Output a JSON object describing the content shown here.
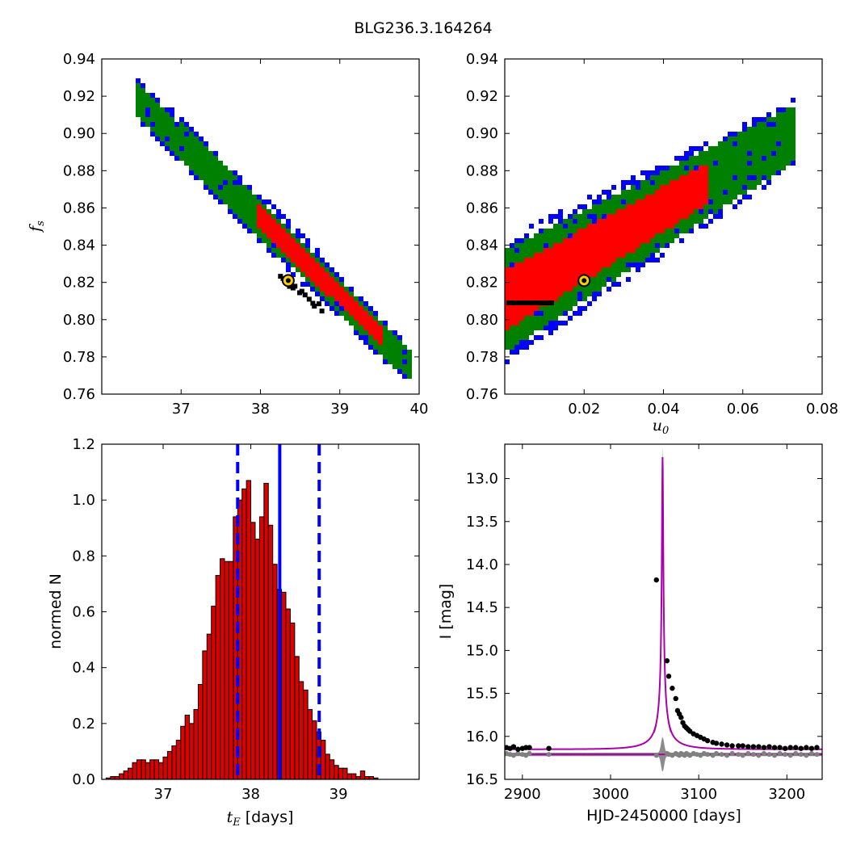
{
  "figure": {
    "title": "BLG236.3.164264",
    "colors": {
      "level1": "#ff0000",
      "level2": "#008000",
      "level3": "#0000ff",
      "chain_points": "#000000",
      "best_fit_marker": "#ffcc00",
      "hist_bar": "#dd0000",
      "median_line": "#0000ff",
      "model_curve": "#aa00aa",
      "data_points": "#000000",
      "residuals": "#808080"
    }
  },
  "chart_data": [
    {
      "type": "heatmap",
      "id": "tE_vs_fs",
      "xlabel": "",
      "ylabel": "f_s",
      "xlim": [
        36.0,
        40.0
      ],
      "ylim": [
        0.76,
        0.94
      ],
      "xticks": [
        "37",
        "38",
        "39",
        "40"
      ],
      "yticks": [
        "0.76",
        "0.78",
        "0.80",
        "0.82",
        "0.84",
        "0.86",
        "0.88",
        "0.90",
        "0.92",
        "0.94"
      ],
      "best_fit": {
        "x": 38.35,
        "y": 0.821
      },
      "band": {
        "x_start": 36.4,
        "x_end": 39.9,
        "y_start": 0.921,
        "y_end": 0.775
      },
      "grid": false
    },
    {
      "type": "heatmap",
      "id": "u0_vs_fs",
      "xlabel": "u_0",
      "ylabel": "",
      "xlim": [
        0.0,
        0.08
      ],
      "ylim": [
        0.76,
        0.94
      ],
      "xticks": [
        "0.02",
        "0.04",
        "0.06",
        "0.08"
      ],
      "yticks": [
        "0.76",
        "0.78",
        "0.80",
        "0.82",
        "0.84",
        "0.86",
        "0.88",
        "0.90",
        "0.92",
        "0.94"
      ],
      "best_fit": {
        "x": 0.02,
        "y": 0.821
      },
      "band": {
        "x_start": 0.0,
        "x_end": 0.073,
        "y_start": 0.81,
        "y_end": 0.9
      },
      "grid": false
    },
    {
      "type": "bar",
      "id": "tE_histogram",
      "xlabel": "t_E  [days]",
      "ylabel": "normed N",
      "xlim": [
        36.3,
        39.92
      ],
      "ylim": [
        0.0,
        1.2
      ],
      "xticks": [
        "37",
        "38",
        "39"
      ],
      "yticks": [
        "0.0",
        "0.2",
        "0.4",
        "0.6",
        "0.8",
        "1.0",
        "1.2"
      ],
      "bin_start": 36.35,
      "bin_width": 0.05,
      "values": [
        0.005,
        0.01,
        0.01,
        0.02,
        0.03,
        0.04,
        0.06,
        0.07,
        0.07,
        0.06,
        0.07,
        0.07,
        0.06,
        0.08,
        0.1,
        0.12,
        0.14,
        0.19,
        0.23,
        0.2,
        0.25,
        0.34,
        0.46,
        0.52,
        0.62,
        0.73,
        0.79,
        0.78,
        0.78,
        0.94,
        1.0,
        1.04,
        1.07,
        0.92,
        0.86,
        0.94,
        1.06,
        0.91,
        0.77,
        0.68,
        0.67,
        0.61,
        0.56,
        0.44,
        0.35,
        0.32,
        0.25,
        0.21,
        0.17,
        0.14,
        0.09,
        0.07,
        0.05,
        0.04,
        0.04,
        0.02,
        0.02,
        0.01,
        0.03,
        0.01,
        0.01,
        0.005
      ],
      "median": 38.33,
      "lower_bound": 37.85,
      "upper_bound": 38.78,
      "grid": false
    },
    {
      "type": "line",
      "id": "light_curve",
      "xlabel": "HJD-2450000 [days]",
      "ylabel": "I [mag]",
      "xlim": [
        2880,
        3240
      ],
      "ylim": [
        16.5,
        12.6
      ],
      "xticks": [
        "2900",
        "3000",
        "3100",
        "3200"
      ],
      "yticks": [
        "13.0",
        "13.5",
        "14.0",
        "14.5",
        "15.0",
        "15.5",
        "16.0",
        "16.5"
      ],
      "model": {
        "t0": 3059.0,
        "tE": 38.33,
        "u0": 0.02,
        "baseline_mag": 16.15,
        "peak_mag": 12.75
      },
      "residual_baseline_mag": 16.21,
      "data_points": {
        "x": [
          2882,
          2886,
          2890,
          2895,
          2900,
          2904,
          2908,
          2930,
          3052,
          3064,
          3066,
          3070,
          3074,
          3076,
          3078,
          3080,
          3082,
          3084,
          3086,
          3088,
          3090,
          3094,
          3098,
          3102,
          3106,
          3110,
          3116,
          3120,
          3126,
          3132,
          3138,
          3145,
          3150,
          3156,
          3162,
          3168,
          3174,
          3180,
          3186,
          3192,
          3198,
          3204,
          3210,
          3216,
          3222,
          3228,
          3234
        ],
        "y": [
          16.13,
          16.14,
          16.12,
          16.15,
          16.14,
          16.13,
          16.13,
          16.14,
          14.18,
          15.12,
          15.3,
          15.44,
          15.56,
          15.7,
          15.74,
          15.78,
          15.84,
          15.88,
          15.9,
          15.92,
          15.94,
          15.97,
          15.99,
          16.01,
          16.03,
          16.05,
          16.07,
          16.08,
          16.09,
          16.1,
          16.11,
          16.11,
          16.11,
          16.12,
          16.12,
          16.12,
          16.13,
          16.12,
          16.13,
          16.13,
          16.14,
          16.13,
          16.13,
          16.14,
          16.13,
          16.14,
          16.13
        ]
      },
      "grid": false
    }
  ]
}
